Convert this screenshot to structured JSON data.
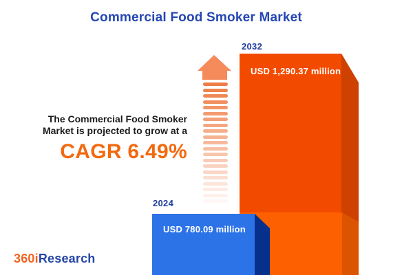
{
  "title": "Commercial Food Smoker Market",
  "note": {
    "line1": "The Commercial Food Smoker",
    "line2": "Market is projected to grow at a",
    "cagr": "CAGR 6.49%"
  },
  "bars": [
    {
      "year": "2024",
      "value_label": "USD 780.09 million",
      "front_color": "#2D73E8",
      "side_color": "#07308C"
    },
    {
      "year": "2032",
      "value_label": "USD 1,290.37 million",
      "front_color": "#F24B00",
      "side_color": "#CE4100",
      "base_front_color": "#FC6000",
      "base_side_color": "#DD5400"
    }
  ],
  "arrow": {
    "head_color": "#F58A5B",
    "stripe_color": "#EF7C45"
  },
  "logo": {
    "part1": "360i",
    "part2": "Research",
    "part1_color": "#F26522",
    "part2_color": "#2546A8"
  },
  "colors": {
    "background": "#FFFFFF",
    "title_text": "#2547B2",
    "year_label_text": "#203E9E",
    "note_text": "#1B1B1B",
    "cagr_text": "#F2690F",
    "value_text": "#FFFFFF"
  },
  "chart_data": {
    "type": "bar",
    "orientation": "vertical",
    "categories": [
      "2024",
      "2032"
    ],
    "values": [
      780.09,
      1290.37
    ],
    "unit": "USD million",
    "value_labels": [
      "USD 780.09 million",
      "USD 1,290.37 million"
    ],
    "bar_colors": [
      "#2D73E8",
      "#F24B00"
    ],
    "title": "Commercial Food Smoker Market",
    "cagr_percent": 6.49,
    "annotation": "The Commercial Food Smoker Market is projected to grow at a CAGR 6.49%",
    "legend": "none",
    "grid": false
  }
}
